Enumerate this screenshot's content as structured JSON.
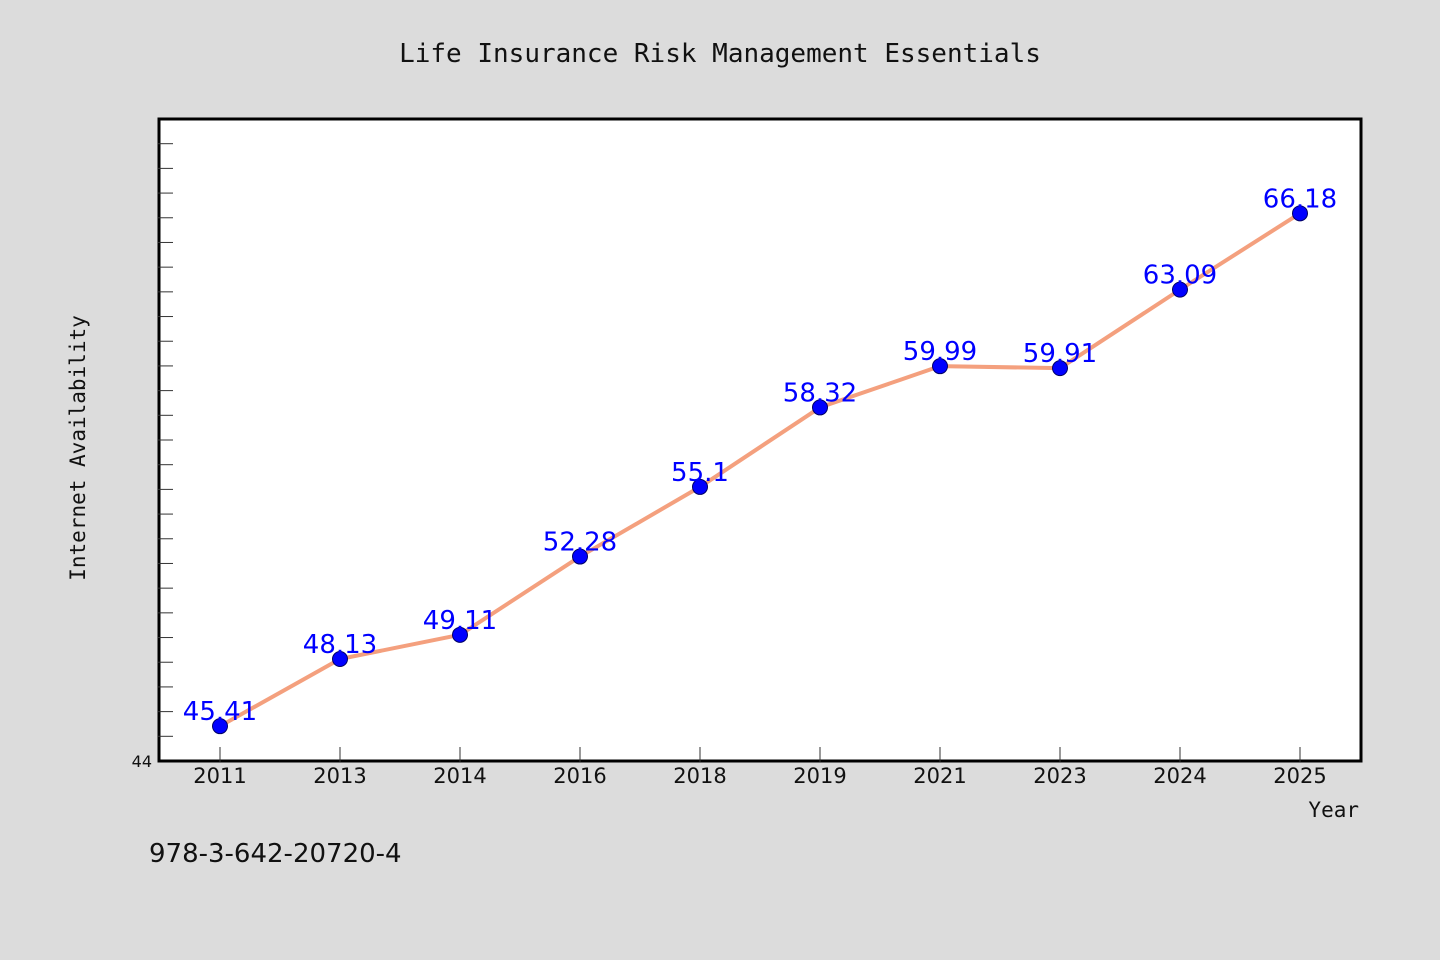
{
  "chart_data": {
    "type": "line",
    "title": "Life Insurance Risk Management Essentials",
    "xlabel": "Year",
    "ylabel": "Internet Availability",
    "categories": [
      "2011",
      "2013",
      "2014",
      "2016",
      "2018",
      "2019",
      "2021",
      "2023",
      "2024",
      "2025"
    ],
    "series": [
      {
        "values": [
          45.41,
          48.13,
          49.11,
          52.28,
          55.1,
          58.32,
          59.99,
          59.91,
          63.09,
          66.18
        ],
        "data_labels": [
          "45.41",
          "48.13",
          "49.11",
          "52.28",
          "55.1",
          "58.32",
          "59.99",
          "59.91",
          "63.09",
          "66.18"
        ]
      }
    ],
    "ylim": [
      44,
      70
    ],
    "y_tick_labels": [
      "44"
    ],
    "grid": false,
    "legend": "none",
    "colors": {
      "line": "#f4a07e",
      "marker": "#0000ff",
      "data_label": "#0000ff",
      "background": "#dcdcdc",
      "plot_background": "#ffffff"
    }
  },
  "footer": {
    "code": "978-3-642-20720-4"
  }
}
